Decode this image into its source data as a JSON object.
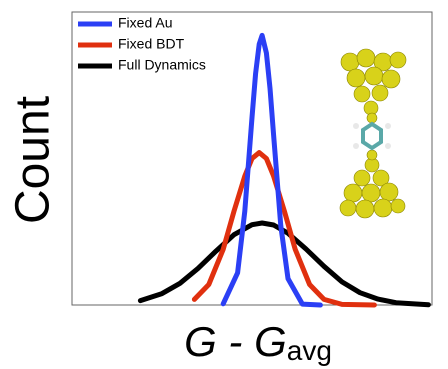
{
  "chart_data": {
    "type": "line",
    "xlabel": "G - G",
    "xlabel_subscript": "avg",
    "ylabel": "Count",
    "xlim": [
      0,
      10
    ],
    "ylim": [
      0,
      10
    ],
    "legend": "upper left",
    "series": [
      {
        "name": "Fixed Au",
        "color": "#2b3ff5",
        "x": [
          4.2,
          4.6,
          4.8,
          5.0,
          5.1,
          5.2,
          5.28,
          5.4,
          5.5,
          5.6,
          5.8,
          6.0,
          6.4,
          6.9
        ],
        "values": [
          0.04,
          1.1,
          3.2,
          6.4,
          7.9,
          8.9,
          9.2,
          8.6,
          7.4,
          5.8,
          2.7,
          0.9,
          0.03,
          0
        ]
      },
      {
        "name": "Fixed BDT",
        "color": "#e0300f",
        "x": [
          3.4,
          3.8,
          4.2,
          4.5,
          4.8,
          5.0,
          5.2,
          5.4,
          5.6,
          5.9,
          6.2,
          6.6,
          7.0,
          7.5,
          8.4
        ],
        "values": [
          0.19,
          0.7,
          1.9,
          3.2,
          4.4,
          5.0,
          5.2,
          5.0,
          4.4,
          3.2,
          1.9,
          0.7,
          0.19,
          0.02,
          0
        ]
      },
      {
        "name": "Full Dynamics",
        "color": "#000000",
        "x": [
          1.9,
          2.5,
          3.0,
          3.5,
          4.0,
          4.5,
          5.0,
          5.28,
          5.6,
          6.0,
          6.5,
          7.0,
          7.5,
          8.0,
          8.5,
          9.0,
          9.9
        ],
        "values": [
          0.15,
          0.39,
          0.74,
          1.25,
          1.84,
          2.4,
          2.74,
          2.8,
          2.73,
          2.45,
          1.91,
          1.32,
          0.79,
          0.42,
          0.2,
          0.08,
          0.01
        ]
      }
    ]
  }
}
